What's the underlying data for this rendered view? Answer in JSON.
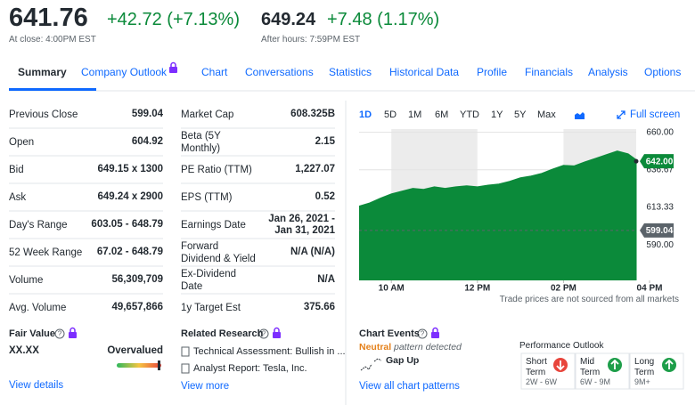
{
  "header": {
    "price": "641.76",
    "change": "+42.72 (+7.13%)",
    "close_note": "At close: 4:00PM EST",
    "after_price": "649.24",
    "after_change": "+7.48 (1.17%)",
    "after_note": "After hours: 7:59PM EST"
  },
  "tabs": [
    "Summary",
    "Company Outlook",
    "Chart",
    "Conversations",
    "Statistics",
    "Historical Data",
    "Profile",
    "Financials",
    "Analysis",
    "Options"
  ],
  "stats_left": [
    [
      "Previous Close",
      "599.04"
    ],
    [
      "Open",
      "604.92"
    ],
    [
      "Bid",
      "649.15 x 1300"
    ],
    [
      "Ask",
      "649.24 x 2900"
    ],
    [
      "Day's Range",
      "603.05 - 648.79"
    ],
    [
      "52 Week Range",
      "67.02 - 648.79"
    ],
    [
      "Volume",
      "56,309,709"
    ],
    [
      "Avg. Volume",
      "49,657,866"
    ]
  ],
  "stats_right": [
    [
      "Market Cap",
      "608.325B"
    ],
    [
      "Beta (5Y Monthly)",
      "2.15"
    ],
    [
      "PE Ratio (TTM)",
      "1,227.07"
    ],
    [
      "EPS (TTM)",
      "0.52"
    ],
    [
      "Earnings Date",
      "Jan 26, 2021 - Jan 31, 2021"
    ],
    [
      "Forward Dividend & Yield",
      "N/A (N/A)"
    ],
    [
      "Ex-Dividend Date",
      "N/A"
    ],
    [
      "1y Target Est",
      "375.66"
    ]
  ],
  "fair_value": {
    "title": "Fair Value",
    "value": "XX.XX",
    "verdict": "Overvalued",
    "link": "View details"
  },
  "related_research": {
    "title": "Related Research",
    "items": [
      "Technical Assessment: Bullish in ...",
      "Analyst Report: Tesla, Inc."
    ],
    "link": "View more"
  },
  "chart_panel": {
    "ranges": [
      "1D",
      "5D",
      "1M",
      "6M",
      "YTD",
      "1Y",
      "5Y",
      "Max"
    ],
    "full_screen": "Full screen",
    "note": "Trade prices are not sourced from all markets"
  },
  "chart_data": {
    "type": "area",
    "color": "#0b8a3a",
    "x": [
      9.25,
      9.5,
      9.75,
      10,
      10.25,
      10.5,
      10.75,
      11,
      11.25,
      11.5,
      11.75,
      12,
      12.25,
      12.5,
      12.75,
      13,
      13.25,
      13.5,
      13.75,
      14,
      14.25,
      14.5,
      14.75,
      15,
      15.25,
      15.5,
      15.7
    ],
    "values": [
      614,
      616,
      619,
      621.6,
      623.3,
      625,
      624.4,
      626,
      625,
      626,
      626.6,
      626,
      627,
      627.7,
      629.4,
      631.6,
      632.7,
      634.4,
      637,
      639.3,
      639,
      641.5,
      643.7,
      646,
      648.2,
      646.5,
      642.6
    ],
    "xlim": [
      9.25,
      16
    ],
    "ylim": [
      568,
      662
    ],
    "xticks": [
      {
        "value": 10,
        "label": "10 AM"
      },
      {
        "value": 12,
        "label": "12 PM"
      },
      {
        "value": 14,
        "label": "02 PM"
      },
      {
        "value": 16,
        "label": "04 PM"
      }
    ],
    "yticks": [
      {
        "value": 660,
        "label": "660.00"
      },
      636.67,
      613.33,
      {
        "value": 590,
        "label": "590.00"
      }
    ],
    "markers": [
      {
        "value": 642,
        "label": "642.00",
        "color": "#0b8a3a"
      },
      {
        "value": 599.04,
        "label": "599.04",
        "color": "#5b636a"
      }
    ]
  },
  "chart_events": {
    "title": "Chart Events",
    "status": "Neutral",
    "status_note": "pattern detected",
    "pattern": "Gap Up",
    "link": "View all chart patterns"
  },
  "performance": {
    "title": "Performance Outlook",
    "items": [
      {
        "term": "Short Term",
        "period": "2W - 6W",
        "direction": "down"
      },
      {
        "term": "Mid Term",
        "period": "6W - 9M",
        "direction": "up"
      },
      {
        "term": "Long Term",
        "period": "9M+",
        "direction": "up"
      }
    ]
  }
}
